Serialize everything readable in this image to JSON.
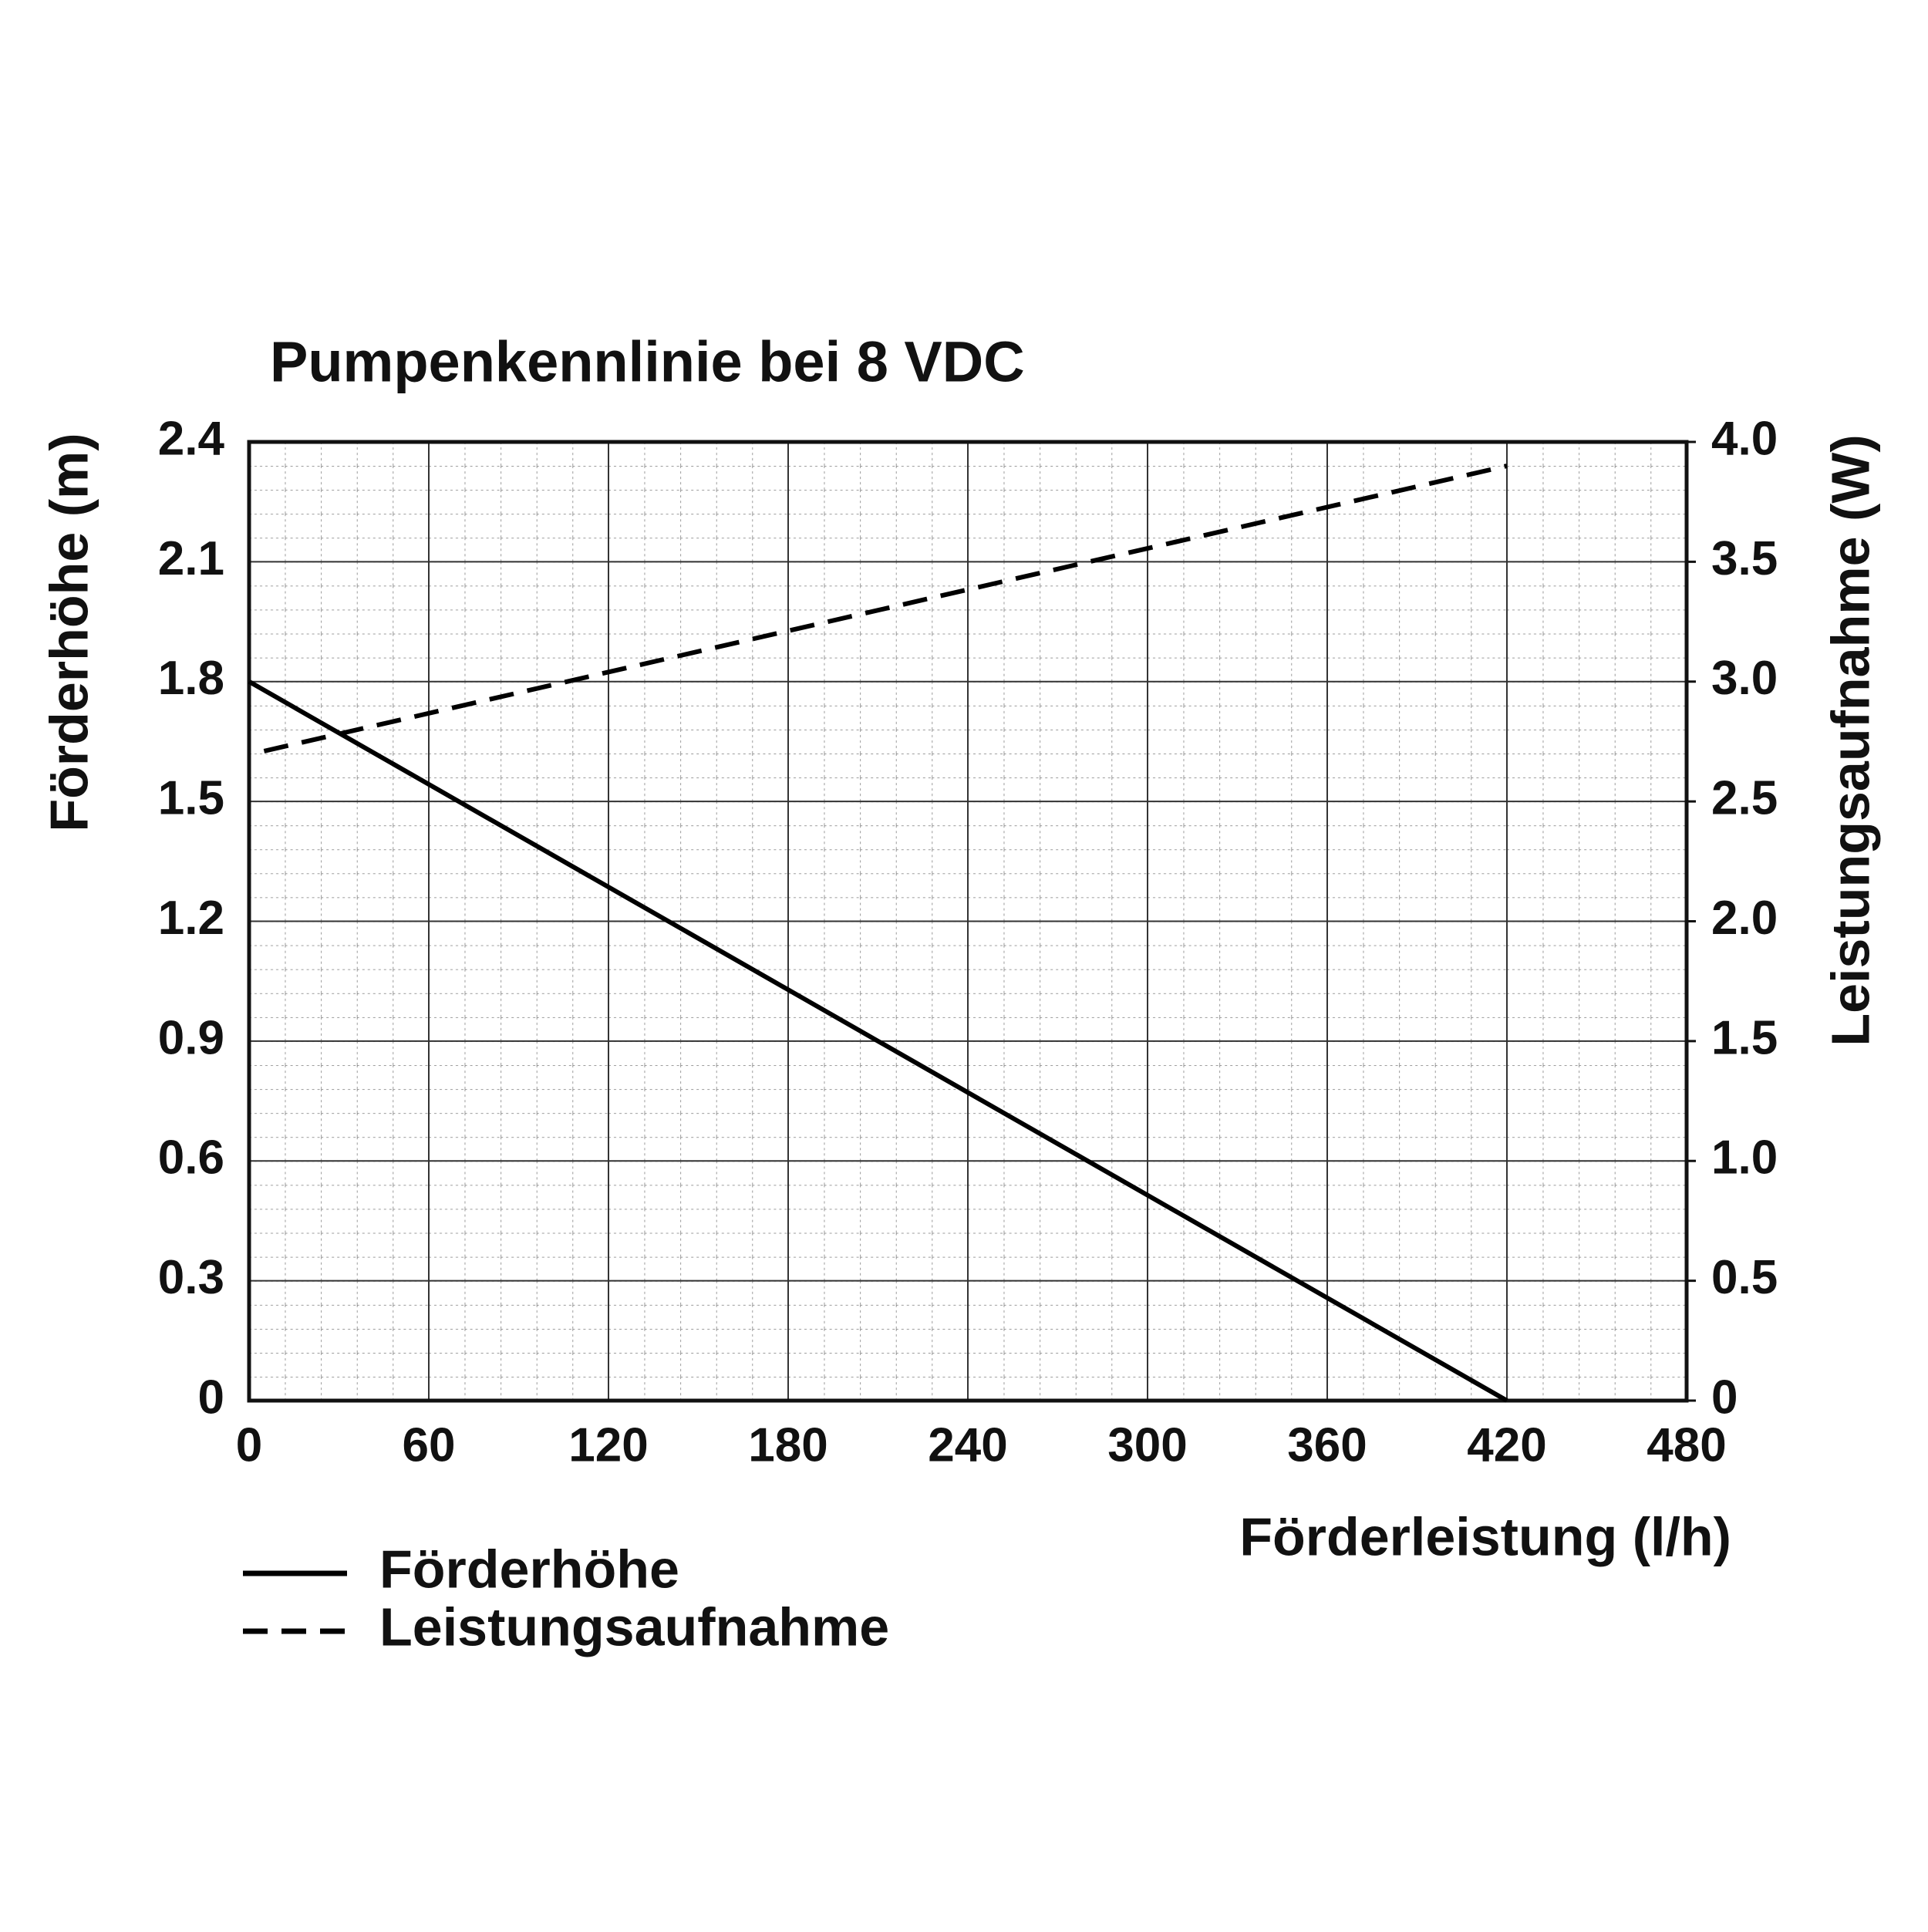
{
  "chart_data": {
    "type": "line",
    "title": "Pumpenkennlinie bei 8 VDC",
    "x_label": "Förderleistung (l/h)",
    "y_label": "Förderhöhe (m)",
    "y2_label": "Leistungsaufnahme (W)",
    "xlim": [
      0,
      480
    ],
    "xticks": [
      0,
      60,
      120,
      180,
      240,
      300,
      360,
      420,
      480
    ],
    "ylim": [
      0,
      2.4
    ],
    "yticks": [
      0,
      0.3,
      0.6,
      0.9,
      1.2,
      1.5,
      1.8,
      2.1,
      2.4
    ],
    "y2lim": [
      0,
      4
    ],
    "y2ticks": [
      0,
      0.5,
      {
        "value": 1,
        "label": "1.0"
      },
      1.5,
      {
        "value": 2,
        "label": "2.0"
      },
      2.5,
      {
        "value": 3,
        "label": "3.0"
      },
      3.5,
      {
        "value": 4,
        "label": "4.0"
      }
    ],
    "grid": true,
    "series": [
      {
        "name": "Förderhöhe",
        "color": "#000000",
        "dashed": false,
        "x": [
          0,
          420
        ],
        "values": [
          1.8,
          0
        ]
      },
      {
        "name": "Leistungsaufnahme",
        "color": "#000000",
        "dashed": true,
        "axis": "y2",
        "x": [
          5,
          420
        ],
        "values": [
          2.71,
          3.9
        ]
      }
    ]
  }
}
